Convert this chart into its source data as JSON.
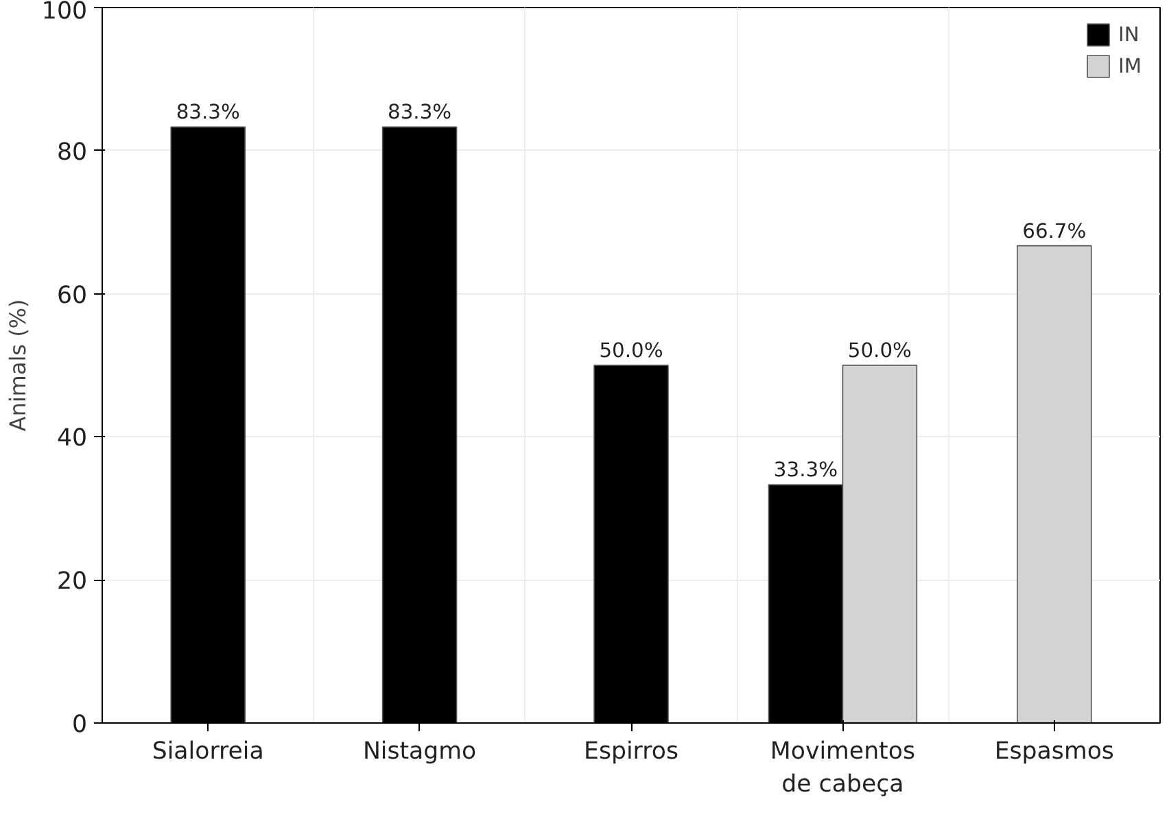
{
  "chart_data": {
    "type": "bar",
    "ylabel": "Animals (%)",
    "categories": [
      "Sialorreia",
      "Nistagmo",
      "Espirros",
      "Movimentos\nde cabeça",
      "Espasmos"
    ],
    "series": [
      {
        "name": "IN",
        "color": "#000000",
        "values": [
          83.3,
          83.3,
          50.0,
          33.3,
          null
        ],
        "value_labels": [
          "83.3%",
          "83.3%",
          "50.0%",
          "33.3%",
          null
        ]
      },
      {
        "name": "IM",
        "color": "#d3d3d3",
        "values": [
          null,
          null,
          null,
          50.0,
          66.7
        ],
        "value_labels": [
          null,
          null,
          null,
          "50.0%",
          "66.7%"
        ]
      }
    ],
    "ylim": [
      0,
      100
    ],
    "yticks": [
      0,
      20,
      40,
      60,
      80,
      100
    ],
    "grid": true,
    "legend": "top right"
  }
}
